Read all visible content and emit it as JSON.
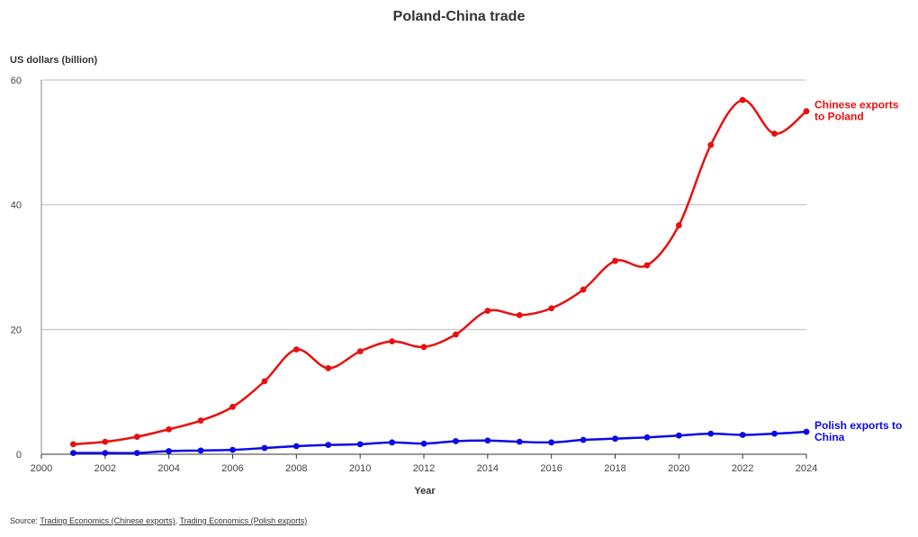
{
  "chart_data": {
    "type": "line",
    "title": "Poland-China trade",
    "ylabel": "US dollars (billion)",
    "xlabel": "Year",
    "xlim": [
      2000,
      2024
    ],
    "ylim": [
      0,
      60
    ],
    "x_ticks": [
      "2000",
      "2002",
      "2004",
      "2006",
      "2008",
      "2010",
      "2012",
      "2014",
      "2016",
      "2018",
      "2020",
      "2022",
      "2024"
    ],
    "y_ticks": [
      "0",
      "20",
      "40",
      "60"
    ],
    "grid": "horizontal",
    "x": [
      2001,
      2002,
      2003,
      2004,
      2005,
      2006,
      2007,
      2008,
      2009,
      2010,
      2011,
      2012,
      2013,
      2014,
      2015,
      2016,
      2017,
      2018,
      2019,
      2020,
      2021,
      2022,
      2023,
      2024
    ],
    "series": [
      {
        "name_lines": [
          "Chinese exports",
          "to Poland"
        ],
        "color": "#e8100f",
        "values": [
          1.6,
          2.0,
          2.8,
          4.0,
          5.4,
          7.6,
          11.7,
          16.8,
          13.8,
          16.5,
          18.1,
          17.2,
          19.2,
          23.0,
          22.3,
          23.4,
          26.4,
          31.0,
          30.3,
          36.7,
          49.6,
          56.8,
          51.4,
          55.0
        ]
      },
      {
        "name_lines": [
          "Polish exports to",
          "China"
        ],
        "color": "#0a0ae6",
        "values": [
          0.2,
          0.2,
          0.2,
          0.5,
          0.6,
          0.7,
          1.0,
          1.3,
          1.5,
          1.6,
          1.9,
          1.7,
          2.1,
          2.2,
          2.0,
          1.9,
          2.3,
          2.5,
          2.7,
          3.0,
          3.3,
          3.1,
          3.3,
          3.6
        ]
      }
    ]
  },
  "source": {
    "prefix": "Source:",
    "link1": "Trading Economics (Chinese exports)",
    "separator": ",",
    "link2": "Trading Economics (Polish exports)"
  }
}
